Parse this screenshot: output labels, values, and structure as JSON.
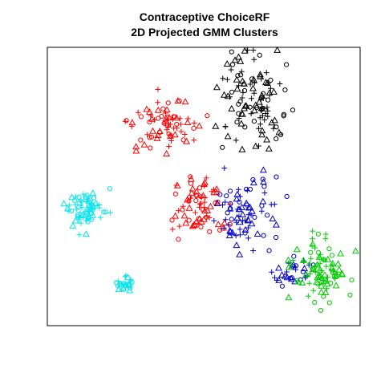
{
  "chart_data": {
    "type": "scatter",
    "title": "Contraceptive ChoiceRF",
    "subtitle": "2D Projected GMM Clusters",
    "xlabel": "",
    "ylabel": "",
    "xlim": [
      0,
      100
    ],
    "ylim": [
      0,
      100
    ],
    "axes_ticks": false,
    "grid": false,
    "legend": "none",
    "marker_shapes": [
      "circle",
      "triangle",
      "plus"
    ],
    "clusters": [
      {
        "color": "#00e5ee",
        "center": [
          12,
          42
        ],
        "spread": [
          3,
          3
        ],
        "count": 70
      },
      {
        "color": "#00e5ee",
        "center": [
          24.5,
          15
        ],
        "spread": [
          1.4,
          1.4
        ],
        "count": 25
      },
      {
        "color": "#ff0000",
        "center": [
          38,
          72
        ],
        "spread": [
          5.5,
          5
        ],
        "count": 75
      },
      {
        "color": "#ff0000",
        "center": [
          48,
          44
        ],
        "spread": [
          4.5,
          5.5
        ],
        "count": 75
      },
      {
        "color": "#000000",
        "center": [
          66,
          80
        ],
        "spread": [
          6,
          9
        ],
        "count": 120
      },
      {
        "color": "#0000cc",
        "center": [
          63,
          42
        ],
        "spread": [
          4.5,
          6
        ],
        "count": 80
      },
      {
        "color": "#0000cc",
        "center": [
          78,
          19
        ],
        "spread": [
          3,
          2.5
        ],
        "count": 30
      },
      {
        "color": "#00cc00",
        "center": [
          88,
          20
        ],
        "spread": [
          4.5,
          5
        ],
        "count": 95
      }
    ]
  }
}
